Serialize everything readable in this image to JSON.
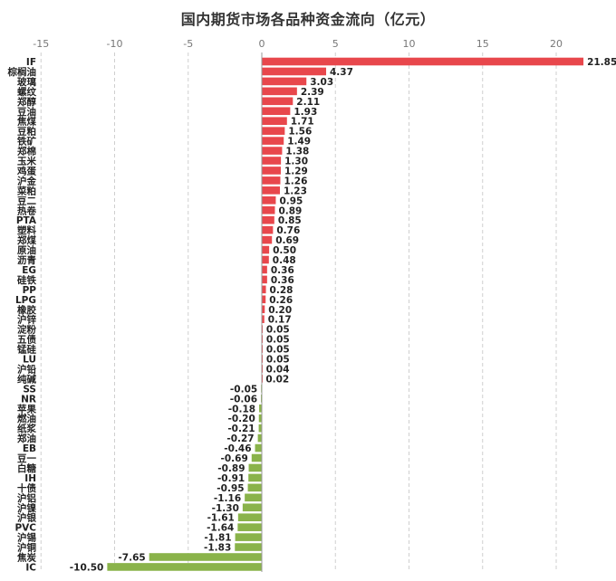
{
  "title": "国内期货市场各品种资金流向（亿元）",
  "chart_data": {
    "type": "bar",
    "orientation": "horizontal",
    "title": "国内期货市场各品种资金流向（亿元）",
    "xlabel": "",
    "ylabel": "",
    "xlim": [
      -15,
      22
    ],
    "x_ticks": [
      -15,
      -10,
      -5,
      0,
      5,
      10,
      15,
      20
    ],
    "grid": true,
    "legend": "none",
    "colors": {
      "positive": "#e8474c",
      "negative": "#8ab34a"
    },
    "categories": [
      "IF",
      "棕榈油",
      "玻璃",
      "螺纹",
      "郑醇",
      "豆油",
      "焦煤",
      "豆粕",
      "铁矿",
      "郑棉",
      "玉米",
      "鸡蛋",
      "沪金",
      "菜粕",
      "豆二",
      "热卷",
      "PTA",
      "塑料",
      "郑煤",
      "原油",
      "沥青",
      "EG",
      "硅铁",
      "PP",
      "LPG",
      "橡胶",
      "沪锌",
      "淀粉",
      "五债",
      "锰硅",
      "LU",
      "沪铅",
      "纯碱",
      "SS",
      "NR",
      "苹果",
      "燃油",
      "纸浆",
      "郑油",
      "EB",
      "豆一",
      "白糖",
      "IH",
      "十债",
      "沪铝",
      "沪镍",
      "沪银",
      "PVC",
      "沪锡",
      "沪铜",
      "焦炭",
      "IC"
    ],
    "values": [
      21.85,
      4.37,
      3.03,
      2.39,
      2.11,
      1.93,
      1.71,
      1.56,
      1.49,
      1.38,
      1.3,
      1.29,
      1.26,
      1.23,
      0.95,
      0.89,
      0.85,
      0.76,
      0.69,
      0.5,
      0.48,
      0.36,
      0.36,
      0.28,
      0.26,
      0.2,
      0.17,
      0.05,
      0.05,
      0.05,
      0.05,
      0.04,
      0.02,
      -0.05,
      -0.06,
      -0.18,
      -0.2,
      -0.21,
      -0.27,
      -0.46,
      -0.69,
      -0.89,
      -0.91,
      -0.95,
      -1.16,
      -1.3,
      -1.61,
      -1.64,
      -1.81,
      -1.83,
      -7.65,
      -10.5
    ],
    "value_labels": [
      "21.85",
      "4.37",
      "3.03",
      "2.39",
      "2.11",
      "1.93",
      "1.71",
      "1.56",
      "1.49",
      "1.38",
      "1.30",
      "1.29",
      "1.26",
      "1.23",
      "0.95",
      "0.89",
      "0.85",
      "0.76",
      "0.69",
      "0.50",
      "0.48",
      "0.36",
      "0.36",
      "0.28",
      "0.26",
      "0.20",
      "0.17",
      "0.05",
      "0.05",
      "0.05",
      "0.05",
      "0.04",
      "0.02",
      "-0.05",
      "-0.06",
      "-0.18",
      "-0.20",
      "-0.21",
      "-0.27",
      "-0.46",
      "-0.69",
      "-0.89",
      "-0.91",
      "-0.95",
      "-1.16",
      "-1.30",
      "-1.61",
      "-1.64",
      "-1.81",
      "-1.83",
      "-7.65",
      "-10.50"
    ]
  }
}
